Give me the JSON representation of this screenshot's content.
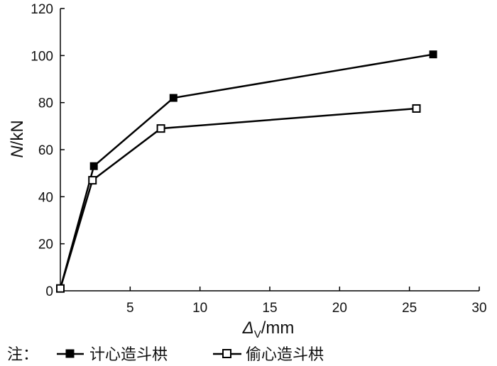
{
  "chart_data": {
    "type": "line",
    "xlabel": {
      "main": "Δ",
      "sub": "V",
      "unit": "/mm"
    },
    "ylabel": {
      "var": "N",
      "unit": "/kN"
    },
    "xlim": [
      0,
      30
    ],
    "ylim": [
      0,
      120
    ],
    "xticks": [
      5,
      10,
      15,
      20,
      25,
      30
    ],
    "yticks": [
      0,
      20,
      40,
      60,
      80,
      100,
      120
    ],
    "grid": false,
    "legend": {
      "prefix": "注：",
      "placement": "bottom"
    },
    "series": [
      {
        "name": "计心造斗栱",
        "marker": "filled-square",
        "color": "#000000",
        "points": [
          [
            0.0,
            1.0
          ],
          [
            2.4,
            53.0
          ],
          [
            8.1,
            82.0
          ],
          [
            26.7,
            100.5
          ]
        ]
      },
      {
        "name": "偷心造斗栱",
        "marker": "open-square",
        "color": "#000000",
        "points": [
          [
            0.0,
            1.0
          ],
          [
            2.3,
            47.0
          ],
          [
            7.2,
            69.0
          ],
          [
            25.5,
            77.5
          ]
        ]
      }
    ]
  }
}
